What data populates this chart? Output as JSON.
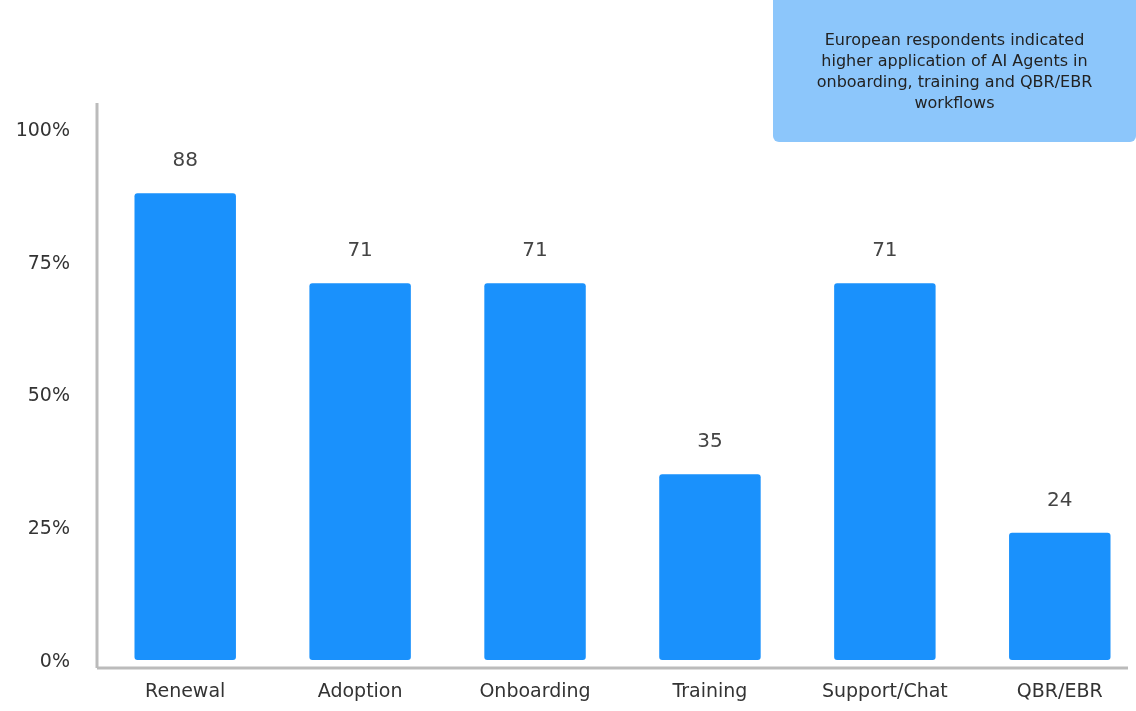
{
  "chart_data": {
    "type": "bar",
    "categories": [
      "Renewal",
      "Adoption",
      "Onboarding",
      "Training",
      "Support/Chat",
      "QBR/EBR"
    ],
    "values": [
      88,
      71,
      71,
      35,
      71,
      24
    ],
    "color": "#1a91fc",
    "ylim": [
      0,
      105
    ],
    "yticks": [
      {
        "value": 0,
        "label": "0%"
      },
      {
        "value": 25,
        "label": "25%"
      },
      {
        "value": 50,
        "label": "50%"
      },
      {
        "value": 75,
        "label": "75%"
      },
      {
        "value": 100,
        "label": "100%"
      }
    ],
    "data_labels": true,
    "annotations": [
      "European respondents indicated higher application of AI Agents in onboarding, training and QBR/EBR workflows"
    ]
  }
}
